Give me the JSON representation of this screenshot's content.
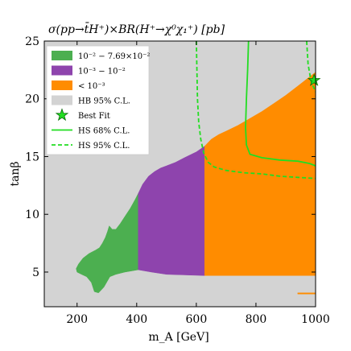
{
  "chart_data": {
    "type": "area",
    "title": "σ(pp→t̄H⁺)×BR(H⁺→χ⁰χ₁⁺) [pb]",
    "xlabel": "m_A [GeV]",
    "ylabel": "tanβ",
    "xlim": [
      90,
      1000
    ],
    "ylim": [
      2,
      25
    ],
    "xticks": [
      "200",
      "400",
      "600",
      "800",
      "1000"
    ],
    "yticks": [
      "5",
      "10",
      "15",
      "20",
      "25"
    ],
    "legend_position": "top-left",
    "legend": [
      {
        "label": "10⁻² − 7.69×10⁻²",
        "color": "#4caf50",
        "kind": "patch"
      },
      {
        "label": "10⁻³ − 10⁻²",
        "color": "#8e44ad",
        "kind": "patch"
      },
      {
        "label": "< 10⁻³",
        "color": "#ff8c00",
        "kind": "patch"
      },
      {
        "label": "HB 95% C.L.",
        "color": "#d3d3d3",
        "kind": "patch"
      },
      {
        "label": "Best Fit",
        "color": "#22dd22",
        "kind": "star"
      },
      {
        "label": "HS 68% C.L.",
        "color": "#22dd22",
        "kind": "solid"
      },
      {
        "label": "HS 95% C.L.",
        "color": "#22dd22",
        "kind": "dashed"
      }
    ],
    "background_color": "#d3d3d3",
    "regions": [
      {
        "name": "green",
        "color": "#4caf50",
        "points": [
          [
            197,
            5.3
          ],
          [
            205,
            5.7
          ],
          [
            220,
            6.2
          ],
          [
            240,
            6.6
          ],
          [
            262,
            6.9
          ],
          [
            275,
            7.1
          ],
          [
            285,
            7.5
          ],
          [
            295,
            8.0
          ],
          [
            302,
            8.5
          ],
          [
            308,
            9.0
          ],
          [
            318,
            8.7
          ],
          [
            330,
            8.7
          ],
          [
            345,
            9.2
          ],
          [
            360,
            9.8
          ],
          [
            378,
            10.5
          ],
          [
            395,
            11.3
          ],
          [
            405,
            11.8
          ],
          [
            405,
            5.2
          ],
          [
            360,
            5.0
          ],
          [
            330,
            4.8
          ],
          [
            310,
            4.6
          ],
          [
            290,
            3.7
          ],
          [
            272,
            3.2
          ],
          [
            258,
            3.3
          ],
          [
            248,
            4.1
          ],
          [
            232,
            4.6
          ],
          [
            215,
            4.8
          ],
          [
            200,
            5.0
          ]
        ]
      },
      {
        "name": "purple",
        "color": "#8e44ad",
        "points": [
          [
            405,
            11.8
          ],
          [
            420,
            12.6
          ],
          [
            440,
            13.3
          ],
          [
            460,
            13.7
          ],
          [
            480,
            14.0
          ],
          [
            500,
            14.2
          ],
          [
            530,
            14.5
          ],
          [
            560,
            14.9
          ],
          [
            600,
            15.4
          ],
          [
            628,
            15.9
          ],
          [
            628,
            4.7
          ],
          [
            500,
            4.8
          ],
          [
            450,
            5.0
          ],
          [
            405,
            5.2
          ]
        ]
      },
      {
        "name": "orange",
        "color": "#ff8c00",
        "points": [
          [
            628,
            15.9
          ],
          [
            650,
            16.5
          ],
          [
            675,
            16.9
          ],
          [
            700,
            17.2
          ],
          [
            740,
            17.7
          ],
          [
            780,
            18.3
          ],
          [
            820,
            18.9
          ],
          [
            860,
            19.6
          ],
          [
            900,
            20.3
          ],
          [
            940,
            21.1
          ],
          [
            975,
            21.8
          ],
          [
            1000,
            22.3
          ],
          [
            1000,
            4.7
          ],
          [
            628,
            4.7
          ]
        ]
      },
      {
        "name": "orange-sliver",
        "color": "#ff8c00",
        "points": [
          [
            940,
            3.2
          ],
          [
            1000,
            3.2
          ],
          [
            1000,
            3.1
          ],
          [
            940,
            3.1
          ]
        ]
      }
    ],
    "lines": [
      {
        "name": "HS 68% C.L.",
        "style": "solid",
        "color": "#22dd22",
        "points": [
          [
            775,
            25
          ],
          [
            772,
            22.5
          ],
          [
            768,
            20.0
          ],
          [
            765,
            17.5
          ],
          [
            768,
            16.0
          ],
          [
            780,
            15.2
          ],
          [
            820,
            14.9
          ],
          [
            880,
            14.7
          ],
          [
            940,
            14.6
          ],
          [
            980,
            14.4
          ],
          [
            1000,
            14.2
          ]
        ]
      },
      {
        "name": "HS 95% C.L.",
        "style": "dashed",
        "color": "#22dd22",
        "points": [
          [
            600,
            25
          ],
          [
            602,
            22.5
          ],
          [
            604,
            20.0
          ],
          [
            608,
            18.0
          ],
          [
            615,
            16.5
          ],
          [
            625,
            15.3
          ],
          [
            640,
            14.5
          ],
          [
            660,
            14.1
          ],
          [
            700,
            13.8
          ],
          [
            760,
            13.6
          ],
          [
            820,
            13.5
          ],
          [
            880,
            13.3
          ],
          [
            940,
            13.2
          ],
          [
            1000,
            13.1
          ]
        ]
      },
      {
        "name": "HS 95% C.L. right",
        "style": "dashed",
        "color": "#22dd22",
        "points": [
          [
            970,
            25
          ],
          [
            975,
            23.0
          ],
          [
            985,
            21.5
          ],
          [
            1000,
            20.6
          ]
        ]
      }
    ],
    "best_fit": {
      "x": 995,
      "y": 21.6
    }
  }
}
